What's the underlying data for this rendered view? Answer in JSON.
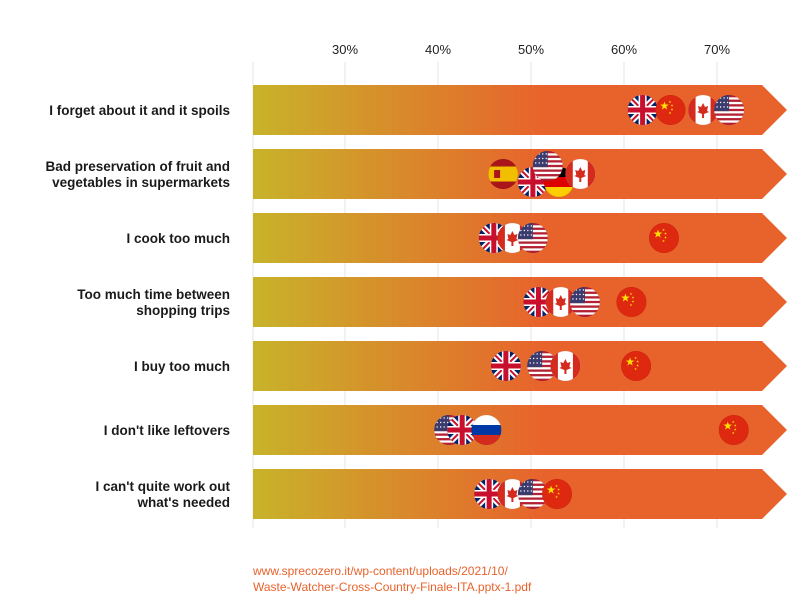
{
  "chart_data": {
    "type": "scatter",
    "x_ticks": [
      "30%",
      "40%",
      "50%",
      "60%",
      "70%"
    ],
    "x_tick_values": [
      30,
      40,
      50,
      60,
      70
    ],
    "gradient": {
      "start": "#c8b32a",
      "end": "#e8622c"
    },
    "categories": [
      {
        "label": [
          "I forget about it and it spoils"
        ],
        "points": [
          {
            "country": "uk",
            "value": 62
          },
          {
            "country": "china",
            "value": 65
          },
          {
            "country": "canada",
            "value": 68.5
          },
          {
            "country": "usa",
            "value": 71.3
          }
        ]
      },
      {
        "label": [
          "Bad preservation of fruit and",
          "vegetables in supermarkets"
        ],
        "points": [
          {
            "country": "spain",
            "value": 47
          },
          {
            "country": "uk",
            "value": 50.2
          },
          {
            "country": "germany",
            "value": 53
          },
          {
            "country": "usa",
            "value": 51.8
          },
          {
            "country": "canada",
            "value": 55.3
          }
        ]
      },
      {
        "label": [
          "I cook too much"
        ],
        "points": [
          {
            "country": "uk",
            "value": 46
          },
          {
            "country": "canada",
            "value": 48
          },
          {
            "country": "usa",
            "value": 50.2
          },
          {
            "country": "china",
            "value": 64.3
          }
        ]
      },
      {
        "label": [
          "Too much time between",
          "shopping trips"
        ],
        "points": [
          {
            "country": "uk",
            "value": 50.8
          },
          {
            "country": "canada",
            "value": 53.2
          },
          {
            "country": "usa",
            "value": 55.8
          },
          {
            "country": "china",
            "value": 60.8
          }
        ]
      },
      {
        "label": [
          "I buy too much"
        ],
        "points": [
          {
            "country": "uk",
            "value": 47.3
          },
          {
            "country": "usa",
            "value": 51.2
          },
          {
            "country": "canada",
            "value": 53.7
          },
          {
            "country": "china",
            "value": 61.3
          }
        ]
      },
      {
        "label": [
          "I don't like leftovers"
        ],
        "points": [
          {
            "country": "usa",
            "value": 41.2
          },
          {
            "country": "uk",
            "value": 42.6
          },
          {
            "country": "russia",
            "value": 45.2
          },
          {
            "country": "china",
            "value": 71.8
          }
        ]
      },
      {
        "label": [
          "I can't quite work out",
          "what's needed"
        ],
        "points": [
          {
            "country": "uk",
            "value": 45.5
          },
          {
            "country": "canada",
            "value": 48
          },
          {
            "country": "usa",
            "value": 50.2
          },
          {
            "country": "china",
            "value": 52.8
          }
        ]
      }
    ]
  },
  "source": {
    "line1": "www.sprecozero.it/wp-content/uploads/2021/10/",
    "line2": "Waste-Watcher-Cross-Country-Finale-ITA.pptx-1.pdf"
  }
}
